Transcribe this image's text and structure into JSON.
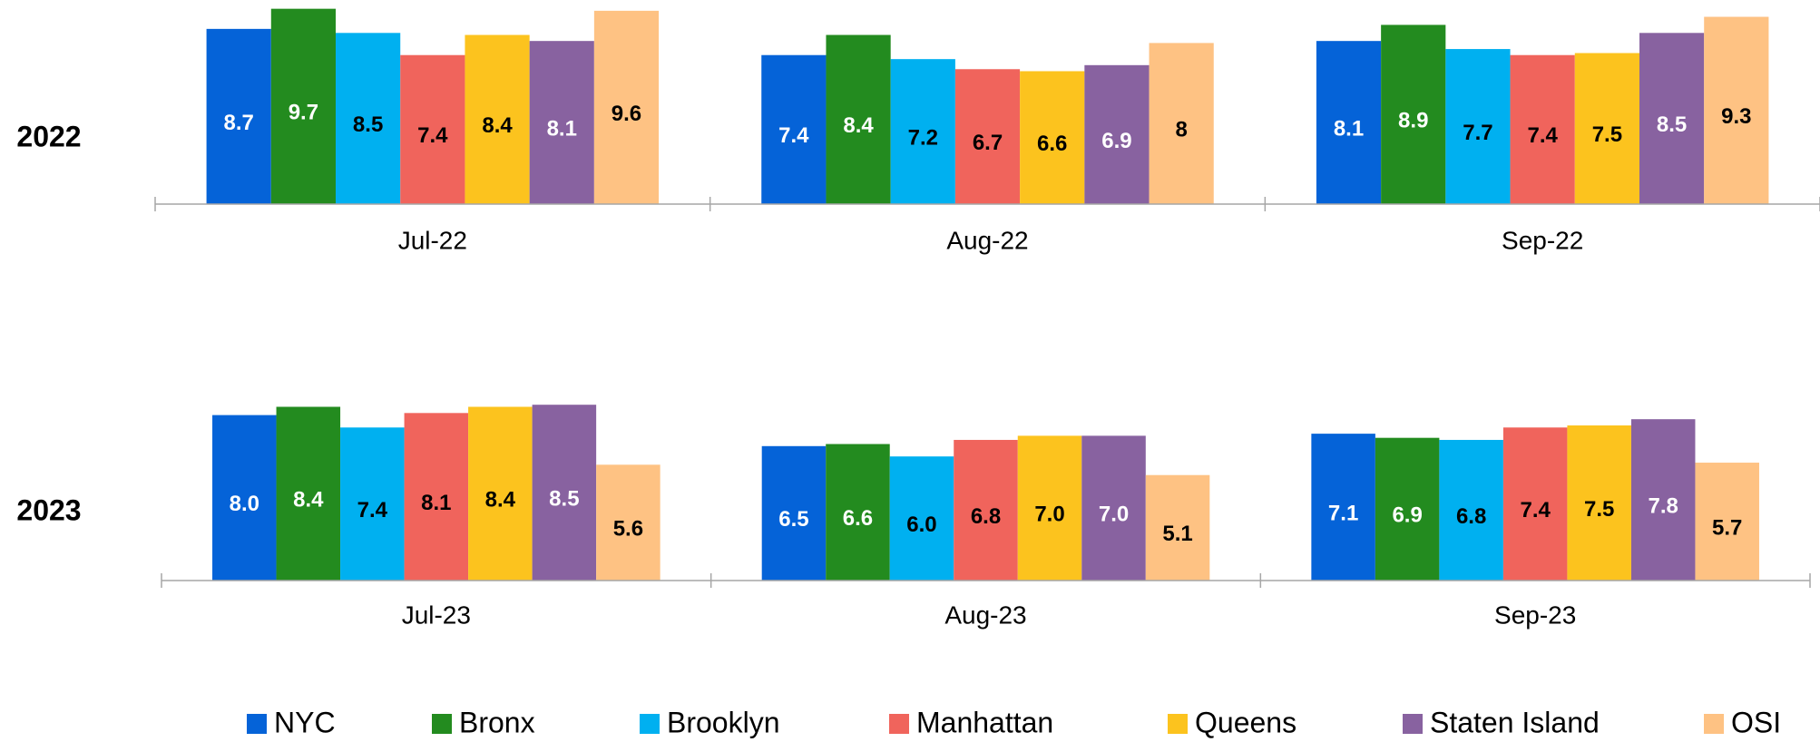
{
  "chart_data": [
    {
      "type": "bar",
      "title": "2022",
      "categories": [
        "Jul-22",
        "Aug-22",
        "Sep-22"
      ],
      "series": [
        {
          "name": "NYC",
          "color": "#0563d8",
          "values": [
            8.7,
            7.4,
            8.1
          ]
        },
        {
          "name": "Bronx",
          "color": "#238b1f",
          "values": [
            9.7,
            8.4,
            8.9
          ]
        },
        {
          "name": "Brooklyn",
          "color": "#00b0f0",
          "values": [
            8.5,
            7.2,
            7.7
          ]
        },
        {
          "name": "Manhattan",
          "color": "#f0645c",
          "values": [
            7.4,
            6.7,
            7.4
          ]
        },
        {
          "name": "Queens",
          "color": "#fcc31e",
          "values": [
            8.4,
            6.6,
            7.5
          ]
        },
        {
          "name": "Staten Island",
          "color": "#8862a0",
          "values": [
            8.1,
            6.9,
            8.5
          ]
        },
        {
          "name": "OSI",
          "color": "#fec283",
          "values": [
            9.6,
            8,
            9.3
          ]
        }
      ],
      "ylim": [
        0,
        10
      ]
    },
    {
      "type": "bar",
      "title": "2023",
      "categories": [
        "Jul-23",
        "Aug-23",
        "Sep-23"
      ],
      "series": [
        {
          "name": "NYC",
          "color": "#0563d8",
          "values": [
            8.0,
            6.5,
            7.1
          ],
          "value_labels": [
            "8.0",
            "6.5",
            "7.1"
          ]
        },
        {
          "name": "Bronx",
          "color": "#238b1f",
          "values": [
            8.4,
            6.6,
            6.9
          ],
          "value_labels": [
            "8.4",
            "6.6",
            "6.9"
          ]
        },
        {
          "name": "Brooklyn",
          "color": "#00b0f0",
          "values": [
            7.4,
            6.0,
            6.8
          ],
          "value_labels": [
            "7.4",
            "6.0",
            "6.8"
          ]
        },
        {
          "name": "Manhattan",
          "color": "#f0645c",
          "values": [
            8.1,
            6.8,
            7.4
          ],
          "value_labels": [
            "8.1",
            "6.8",
            "7.4"
          ]
        },
        {
          "name": "Queens",
          "color": "#fcc31e",
          "values": [
            8.4,
            7.0,
            7.5
          ],
          "value_labels": [
            "8.4",
            "7.0",
            "7.5"
          ]
        },
        {
          "name": "Staten Island",
          "color": "#8862a0",
          "values": [
            8.5,
            7.0,
            7.8
          ],
          "value_labels": [
            "8.5",
            "7.0",
            "7.8"
          ]
        },
        {
          "name": "OSI",
          "color": "#fec283",
          "values": [
            5.6,
            5.1,
            5.7
          ],
          "value_labels": [
            "5.6",
            "5.1",
            "5.7"
          ]
        }
      ],
      "ylim": [
        0,
        10
      ]
    }
  ]
}
